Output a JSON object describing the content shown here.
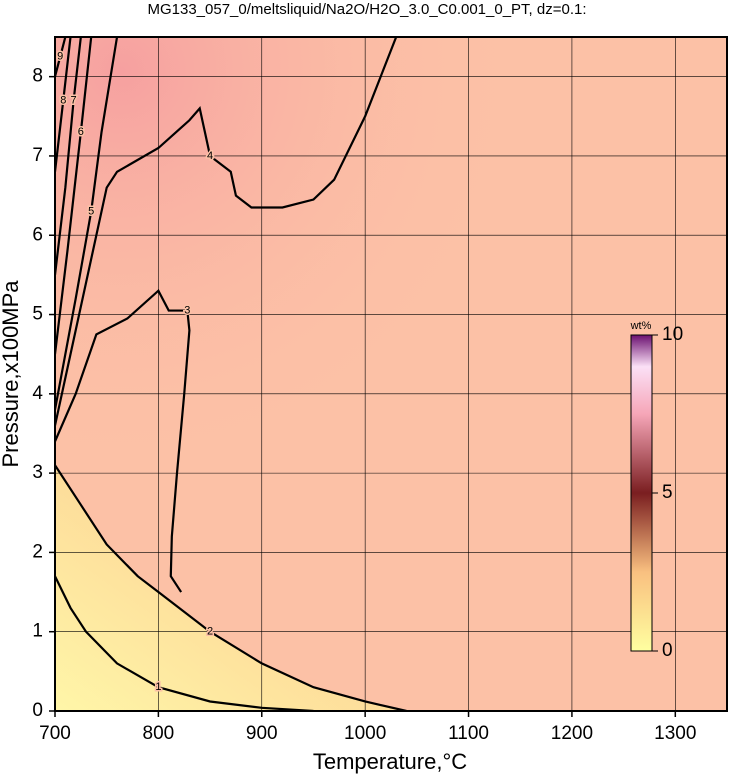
{
  "chart_data": {
    "type": "contour",
    "title": "MG133_057_0/meltsliquid/Na2O/H2O_3.0_C0.001_0_PT, dz=0.1:",
    "x_label": "Temperature,°C",
    "y_label": "Pressure,x100MPa",
    "xlim": [
      700,
      1350
    ],
    "ylim": [
      0,
      8.5
    ],
    "xticks": [
      700,
      800,
      900,
      1000,
      1100,
      1200,
      1300
    ],
    "yticks": [
      0,
      1,
      2,
      3,
      4,
      5,
      6,
      7,
      8
    ],
    "grid": true,
    "contours": [
      {
        "level": 1,
        "x": [
          700,
          715,
          730,
          760,
          800,
          850,
          900,
          950
        ],
        "y": [
          1.7,
          1.3,
          1.0,
          0.6,
          0.3,
          0.12,
          0.04,
          0
        ]
      },
      {
        "level": 2,
        "x": [
          700,
          725,
          750,
          780,
          800,
          850,
          900,
          950,
          1000,
          1040
        ],
        "y": [
          3.1,
          2.6,
          2.1,
          1.7,
          1.5,
          1.0,
          0.6,
          0.3,
          0.12,
          0
        ]
      },
      {
        "level": 3,
        "x": [
          700,
          720,
          740,
          770,
          800,
          810,
          828,
          830,
          825,
          818,
          813,
          812,
          822
        ],
        "y": [
          3.4,
          4.0,
          4.75,
          4.95,
          5.3,
          5.05,
          5.05,
          4.8,
          4.0,
          3.0,
          2.2,
          1.7,
          1.5
        ]
      },
      {
        "level": 4,
        "x": [
          700,
          720,
          750,
          760,
          800,
          830,
          840,
          845,
          850,
          870,
          875,
          890,
          920,
          950,
          970,
          1000,
          1030
        ],
        "y": [
          3.6,
          4.8,
          6.6,
          6.8,
          7.1,
          7.45,
          7.6,
          7.3,
          7.0,
          6.8,
          6.5,
          6.35,
          6.35,
          6.45,
          6.7,
          7.5,
          8.5
        ]
      },
      {
        "level": 5,
        "x": [
          700,
          720,
          735,
          745,
          760
        ],
        "y": [
          3.8,
          5.2,
          6.3,
          7.3,
          8.5
        ]
      },
      {
        "level": 6,
        "x": [
          700,
          712,
          725,
          735
        ],
        "y": [
          4.5,
          5.8,
          7.3,
          8.5
        ]
      },
      {
        "level": 7,
        "x": [
          700,
          710,
          718,
          725
        ],
        "y": [
          5.5,
          6.6,
          7.7,
          8.5
        ]
      },
      {
        "level": 8,
        "x": [
          700,
          708,
          715
        ],
        "y": [
          6.8,
          7.7,
          8.5
        ]
      },
      {
        "level": 9,
        "x": [
          700,
          705,
          710
        ],
        "y": [
          8.0,
          8.25,
          8.5
        ]
      }
    ],
    "colorbar": {
      "label": "wt%",
      "lim": [
        0,
        10
      ],
      "ticks": [
        0,
        5,
        10
      ]
    }
  }
}
